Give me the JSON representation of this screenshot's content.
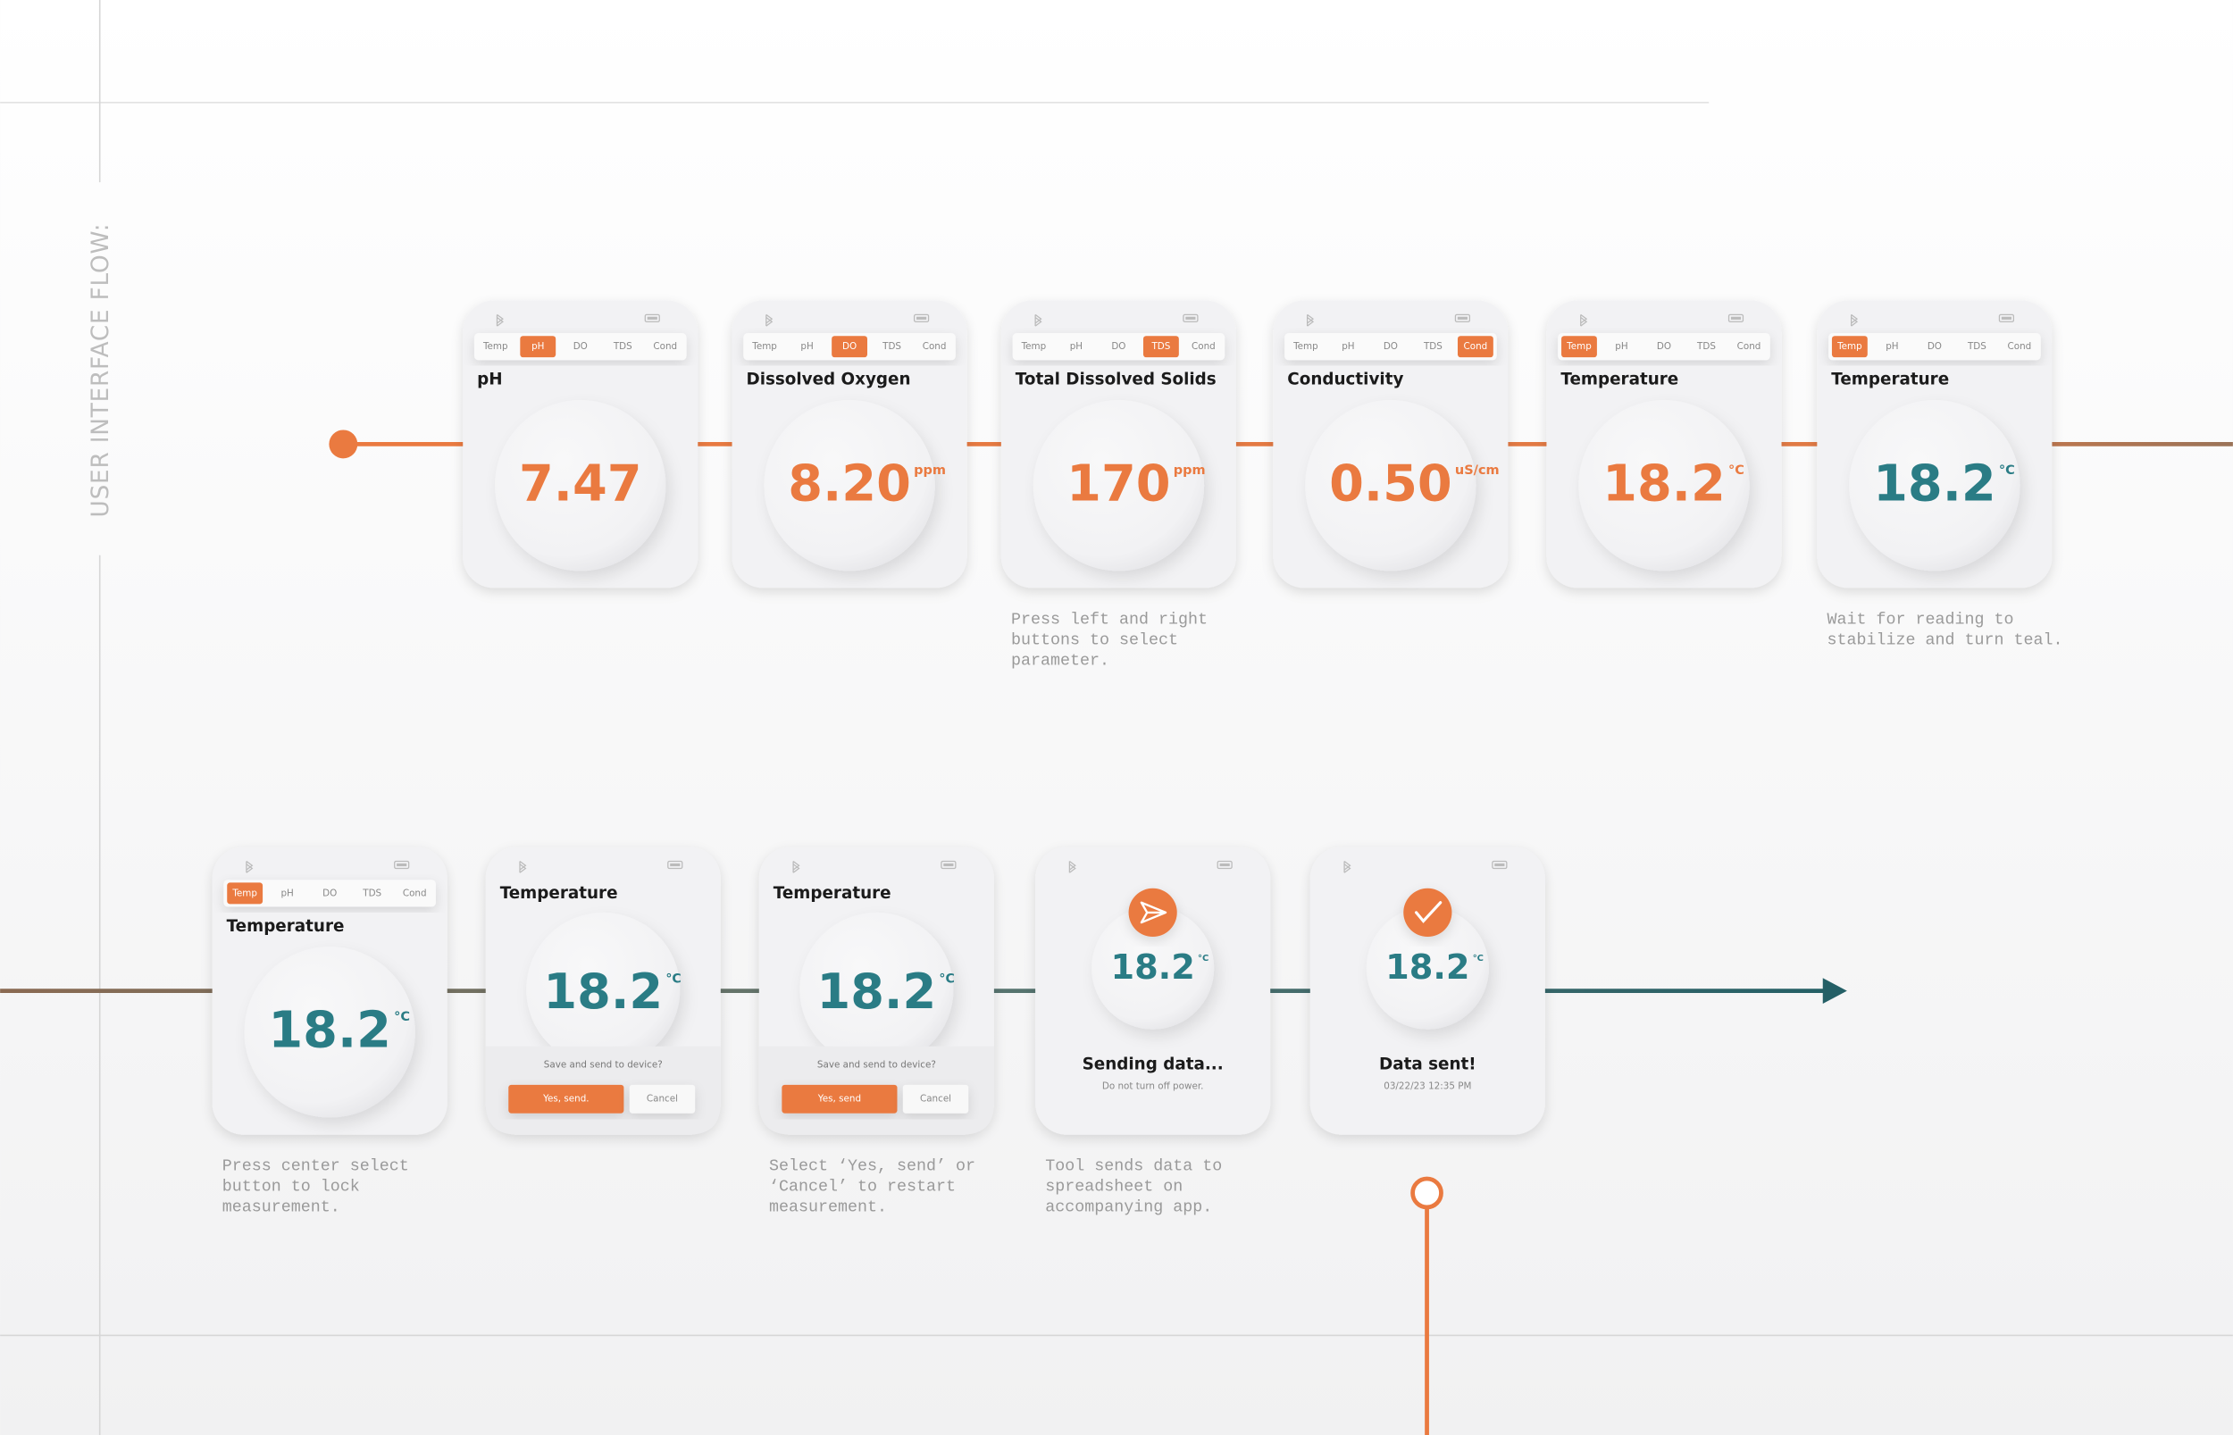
{
  "title": "USER INTERFACE FLOW:",
  "tabs": [
    "Temp",
    "pH",
    "DO",
    "TDS",
    "Cond"
  ],
  "rows": [
    [
      {
        "kind": "measure",
        "active_tab": 1,
        "title": "pH",
        "value": "7.47",
        "color": "#ea7a40"
      },
      {
        "kind": "measure",
        "active_tab": 2,
        "title": "Dissolved Oxygen",
        "value": "8.20",
        "unit": "ppm",
        "color": "#ea7a40"
      },
      {
        "kind": "measure",
        "active_tab": 3,
        "title": "Total Dissolved Solids",
        "value": "170",
        "unit": "ppm",
        "color": "#ea7a40",
        "note": [
          "Press left and right",
          "buttons to select",
          "parameter."
        ]
      },
      {
        "kind": "measure",
        "active_tab": 4,
        "title": "Conductivity",
        "value": "0.50",
        "unit": "uS/cm",
        "color": "#ea7a40"
      },
      {
        "kind": "measure",
        "active_tab": 0,
        "title": "Temperature",
        "value": "18.2",
        "unit": "°C",
        "color": "#ea7a40"
      },
      {
        "kind": "measure",
        "active_tab": 0,
        "title": "Temperature",
        "value": "18.2",
        "unit": "°C",
        "color": "#2a7c85",
        "note": [
          "Wait for reading to",
          "stabilize and turn teal."
        ]
      }
    ],
    [
      {
        "kind": "measure",
        "active_tab": 0,
        "title": "Temperature",
        "value": "18.2",
        "unit": "°C",
        "color": "#2a7c85",
        "note": [
          "Press center select",
          "button to lock",
          "measurement."
        ]
      },
      {
        "kind": "confirm",
        "title": "Temperature",
        "value": "18.2",
        "unit": "°C",
        "color": "#2a7c85",
        "prompt": "Save and send to device?",
        "confirm": "Yes, send.",
        "cancel": "Cancel"
      },
      {
        "kind": "confirm",
        "title": "Temperature",
        "value": "18.2",
        "unit": "°C",
        "color": "#2a7c85",
        "prompt": "Save and send to device?",
        "confirm": "Yes, send",
        "cancel": "Cancel",
        "note": [
          "Select ‘Yes, send’ or",
          "‘Cancel’ to restart",
          "measurement."
        ]
      },
      {
        "kind": "status",
        "icon": "send",
        "value": "18.2",
        "unit": "°C",
        "color": "#2a7c85",
        "status": "Sending data...",
        "detail": "Do not turn off power.",
        "note": [
          "Tool sends data to",
          "spreadsheet on",
          "accompanying app."
        ]
      },
      {
        "kind": "status",
        "icon": "check",
        "value": "18.2",
        "unit": "°C",
        "color": "#2a7c85",
        "status": "Data sent!",
        "detail": "03/22/23 12:35 PM"
      }
    ]
  ]
}
